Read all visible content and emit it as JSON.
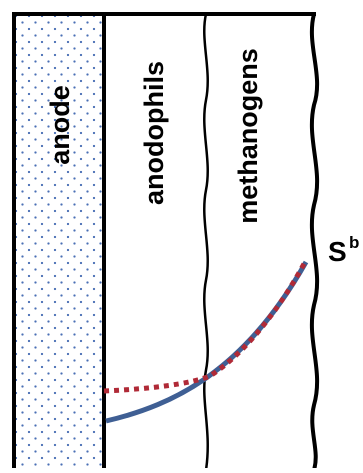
{
  "diagram": {
    "regions": {
      "anode": "anode",
      "anodophils": "anodophils",
      "methanogens": "methanogens"
    },
    "substrate_symbol": "S",
    "substrate_superscript": "b",
    "colors": {
      "anode_fill": "#ffffff",
      "anode_dots": "#4a6fb5",
      "solid_curve": "#3f5f94",
      "dotted_curve": "#b02a37",
      "outline": "#000000"
    }
  }
}
